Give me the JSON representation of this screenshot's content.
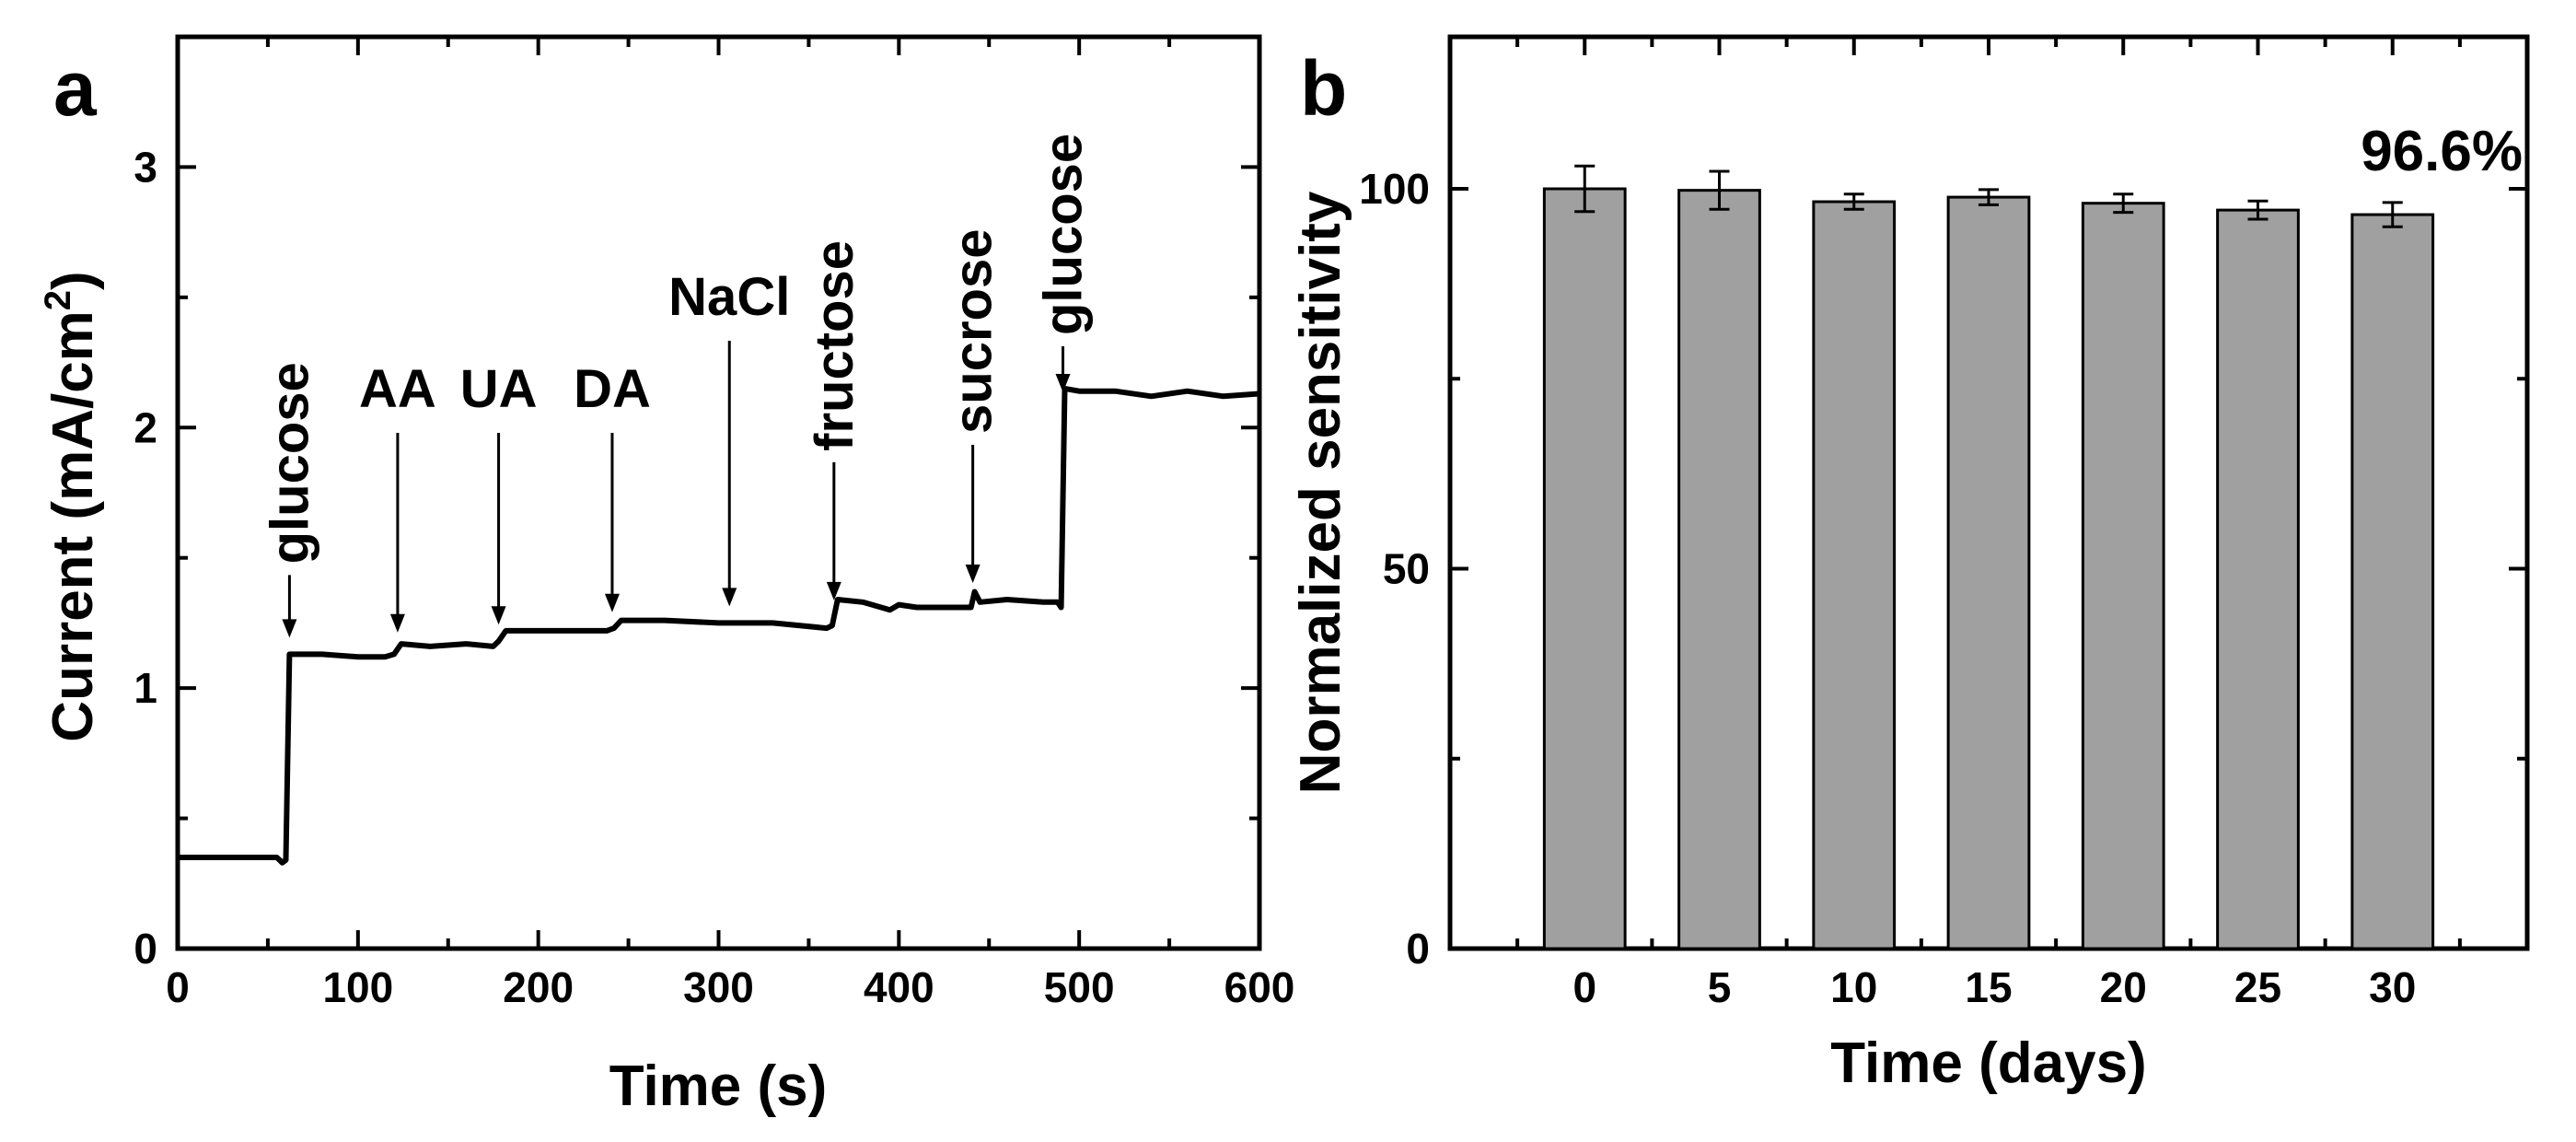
{
  "chart_data": [
    {
      "panel_label": "a",
      "type": "line",
      "xlabel": "Time (s)",
      "ylabel_main": "Current (mA/cm",
      "ylabel_sup": "2",
      "ylabel_close": ")",
      "xlim": [
        0,
        600
      ],
      "ylim": [
        0,
        3.5
      ],
      "xticks": [
        0,
        100,
        200,
        300,
        400,
        500,
        600
      ],
      "xtick_labels": [
        "0",
        "100",
        "200",
        "300",
        "400",
        "500",
        "600"
      ],
      "yticks": [
        0,
        1,
        2,
        3
      ],
      "ytick_labels": [
        "0",
        "1",
        "2",
        "3"
      ],
      "series": [
        {
          "name": "current",
          "x": [
            0,
            5,
            30,
            55,
            58,
            60,
            62,
            80,
            100,
            115,
            120,
            124,
            140,
            160,
            175,
            178,
            182,
            200,
            220,
            238,
            242,
            246,
            270,
            300,
            330,
            360,
            363,
            366,
            380,
            395,
            400,
            410,
            430,
            440,
            442,
            445,
            460,
            480,
            488,
            490,
            492,
            500,
            520,
            540,
            560,
            580,
            600
          ],
          "y": [
            0.35,
            0.35,
            0.35,
            0.35,
            0.33,
            0.34,
            1.13,
            1.13,
            1.12,
            1.12,
            1.13,
            1.17,
            1.16,
            1.17,
            1.16,
            1.18,
            1.22,
            1.22,
            1.22,
            1.22,
            1.23,
            1.26,
            1.26,
            1.25,
            1.25,
            1.23,
            1.24,
            1.34,
            1.33,
            1.3,
            1.32,
            1.31,
            1.31,
            1.31,
            1.37,
            1.33,
            1.34,
            1.33,
            1.33,
            1.31,
            2.15,
            2.14,
            2.14,
            2.12,
            2.14,
            2.12,
            2.13
          ]
        }
      ],
      "annotations": [
        {
          "label": "glucose",
          "x": 62,
          "orientation": "vertical"
        },
        {
          "label": "AA",
          "x": 122,
          "orientation": "horizontal"
        },
        {
          "label": "UA",
          "x": 178,
          "orientation": "horizontal"
        },
        {
          "label": "DA",
          "x": 241,
          "orientation": "horizontal"
        },
        {
          "label": "NaCl",
          "x": 306,
          "orientation": "horizontal"
        },
        {
          "label": "fructose",
          "x": 364,
          "orientation": "vertical"
        },
        {
          "label": "sucrose",
          "x": 441,
          "orientation": "vertical"
        },
        {
          "label": "glucose",
          "x": 491,
          "orientation": "vertical"
        }
      ]
    },
    {
      "panel_label": "b",
      "type": "bar",
      "xlabel": "Time (days)",
      "ylabel": "Normalized sensitivity",
      "categories": [
        "0",
        "5",
        "10",
        "15",
        "20",
        "25",
        "30"
      ],
      "values": [
        100,
        99.8,
        98.3,
        98.9,
        98.1,
        97.2,
        96.6
      ],
      "errors": [
        3.0,
        2.5,
        1.0,
        1.0,
        1.2,
        1.2,
        1.6
      ],
      "ylim": [
        0,
        120
      ],
      "yticks": [
        0,
        50,
        100
      ],
      "ytick_labels": [
        "0",
        "50",
        "100"
      ],
      "minor_yticks": [
        25,
        75
      ],
      "bar_color": "#a0a0a0",
      "annotation": "96.6%"
    }
  ]
}
